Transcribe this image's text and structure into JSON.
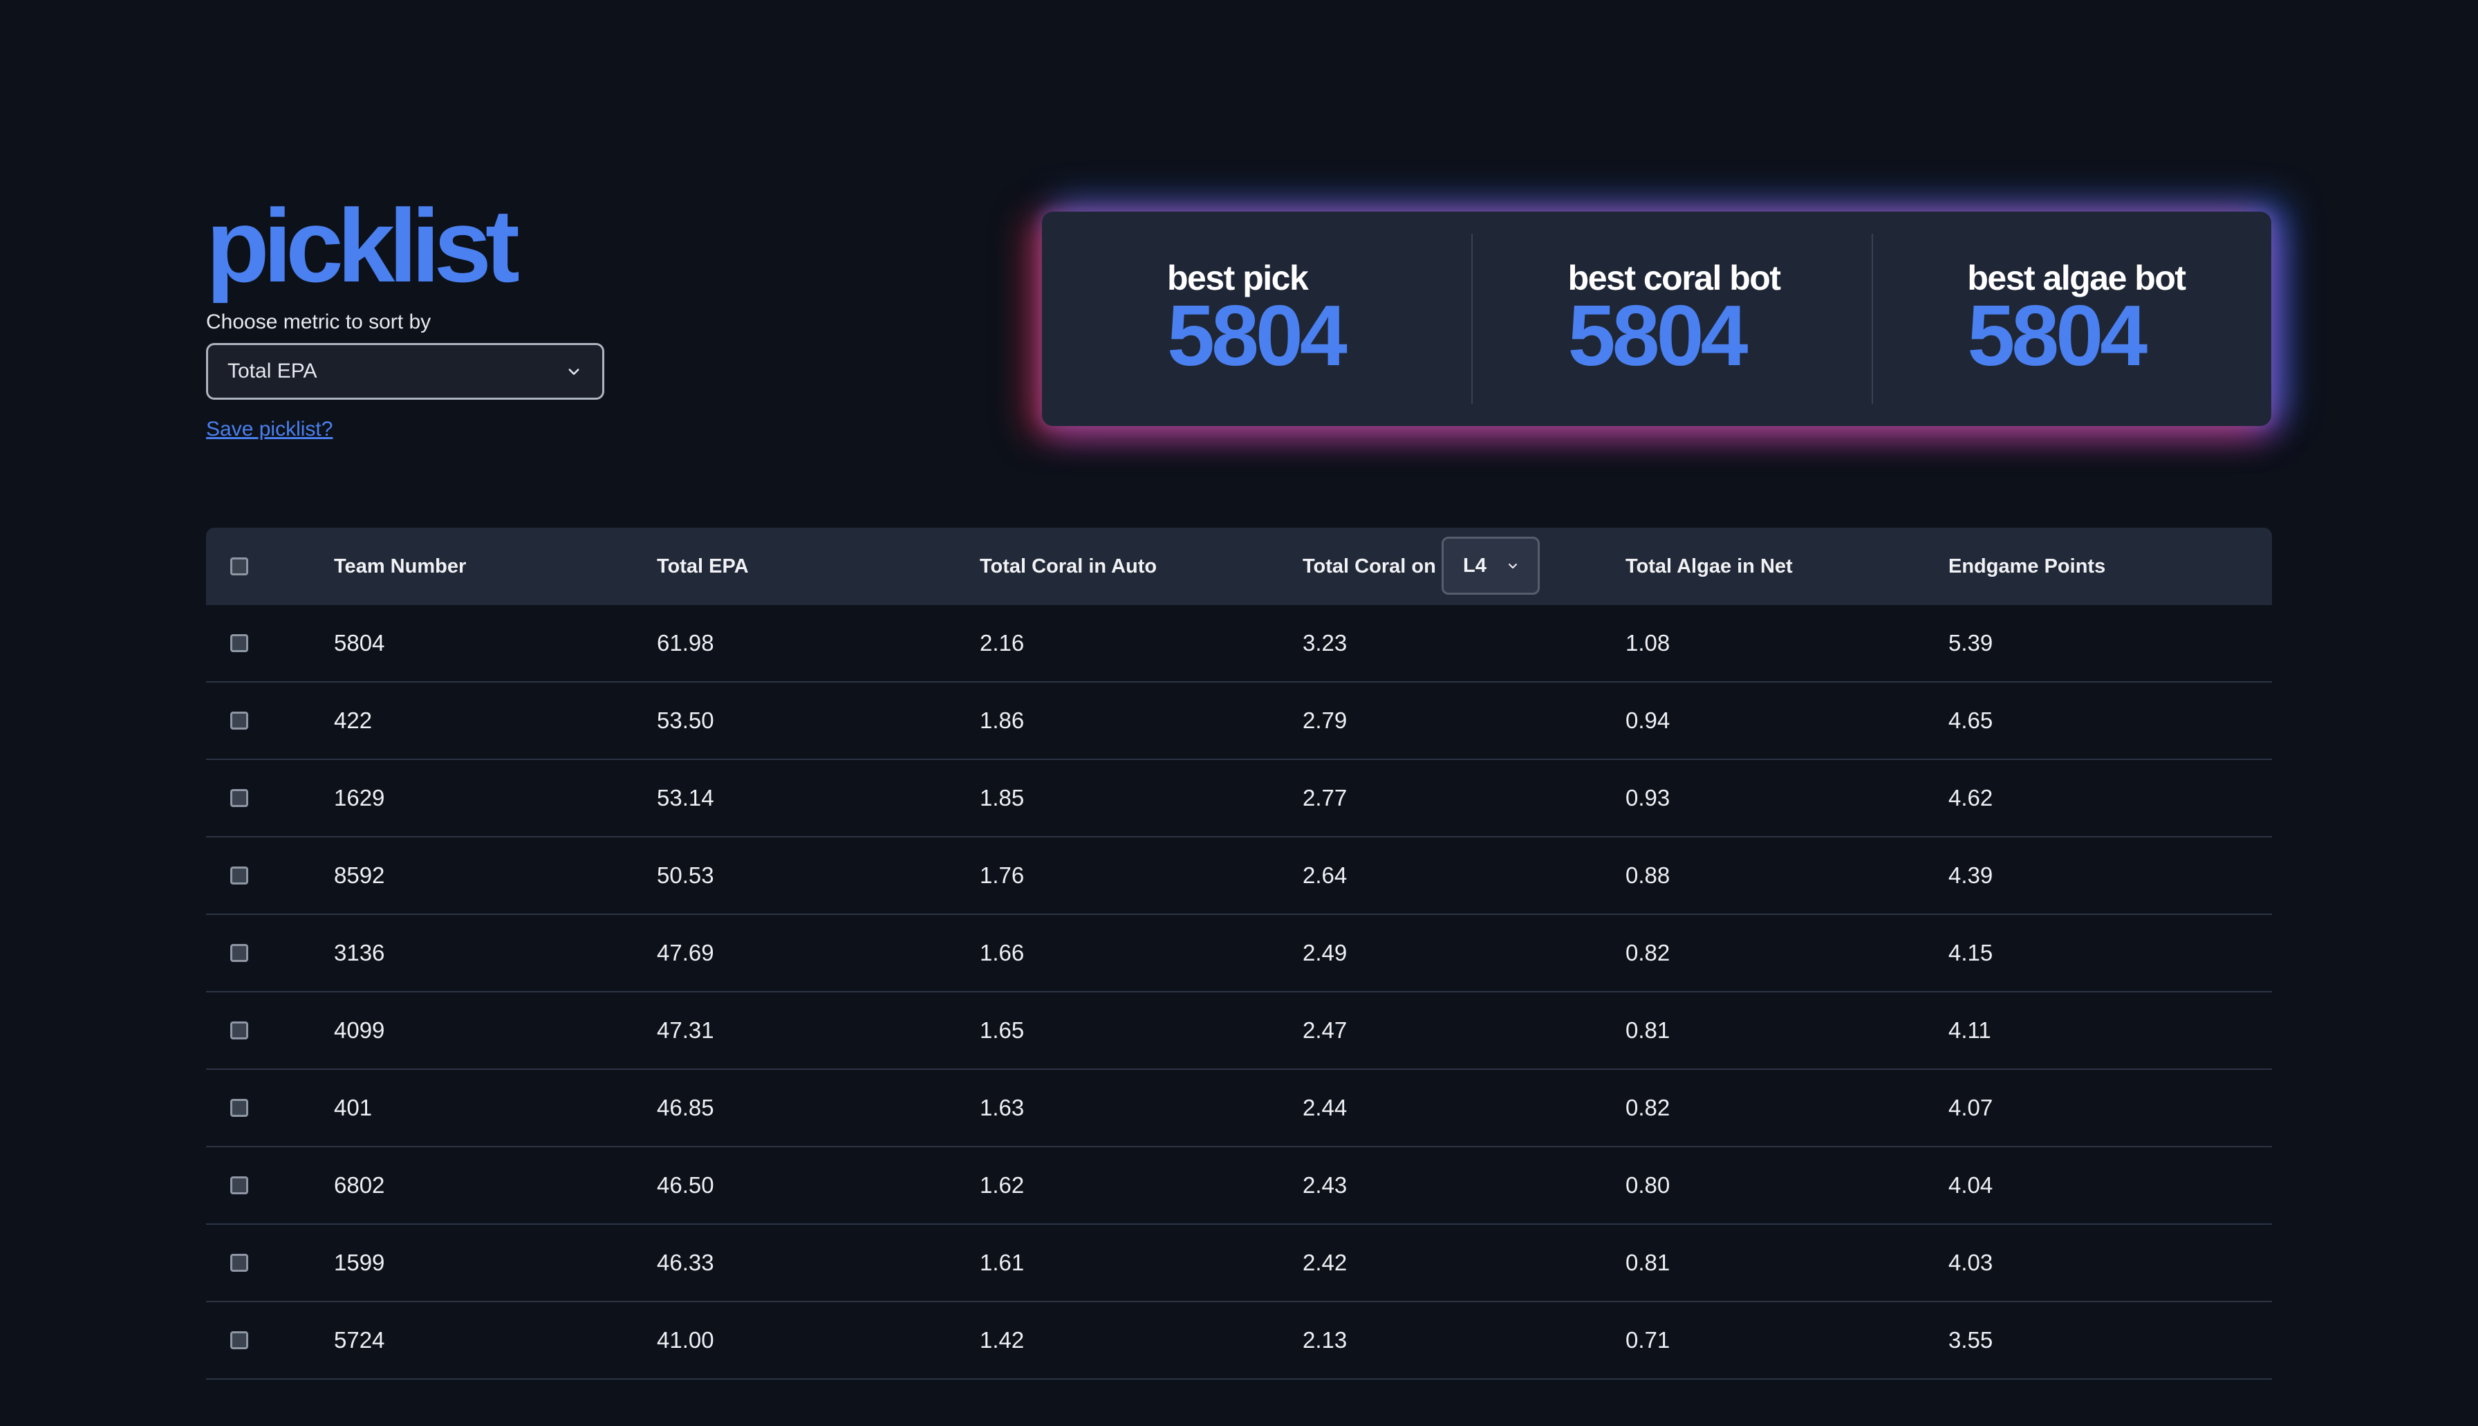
{
  "title": "picklist",
  "sort": {
    "label": "Choose metric to sort by",
    "selected": "Total EPA"
  },
  "save_link": "Save picklist?",
  "stats": [
    {
      "label": "best pick",
      "value": "5804"
    },
    {
      "label": "best coral bot",
      "value": "5804"
    },
    {
      "label": "best algae bot",
      "value": "5804"
    }
  ],
  "table": {
    "headers": {
      "team": "Team Number",
      "epa": "Total EPA",
      "auto": "Total Coral in Auto",
      "coral": "Total Coral on",
      "algae": "Total Algae in Net",
      "endgame": "Endgame Points"
    },
    "level_select": "L4",
    "rows": [
      {
        "team": "5804",
        "epa": "61.98",
        "auto": "2.16",
        "coral": "3.23",
        "algae": "1.08",
        "endgame": "5.39"
      },
      {
        "team": "422",
        "epa": "53.50",
        "auto": "1.86",
        "coral": "2.79",
        "algae": "0.94",
        "endgame": "4.65"
      },
      {
        "team": "1629",
        "epa": "53.14",
        "auto": "1.85",
        "coral": "2.77",
        "algae": "0.93",
        "endgame": "4.62"
      },
      {
        "team": "8592",
        "epa": "50.53",
        "auto": "1.76",
        "coral": "2.64",
        "algae": "0.88",
        "endgame": "4.39"
      },
      {
        "team": "3136",
        "epa": "47.69",
        "auto": "1.66",
        "coral": "2.49",
        "algae": "0.82",
        "endgame": "4.15"
      },
      {
        "team": "4099",
        "epa": "47.31",
        "auto": "1.65",
        "coral": "2.47",
        "algae": "0.81",
        "endgame": "4.11"
      },
      {
        "team": "401",
        "epa": "46.85",
        "auto": "1.63",
        "coral": "2.44",
        "algae": "0.82",
        "endgame": "4.07"
      },
      {
        "team": "6802",
        "epa": "46.50",
        "auto": "1.62",
        "coral": "2.43",
        "algae": "0.80",
        "endgame": "4.04"
      },
      {
        "team": "1599",
        "epa": "46.33",
        "auto": "1.61",
        "coral": "2.42",
        "algae": "0.81",
        "endgame": "4.03"
      },
      {
        "team": "5724",
        "epa": "41.00",
        "auto": "1.42",
        "coral": "2.13",
        "algae": "0.71",
        "endgame": "3.55"
      }
    ]
  },
  "colors": {
    "accent": "#4a80ef",
    "background": "#0d111a",
    "card": "#1f2636",
    "glow_red": "#e43046",
    "glow_blue": "#4078ff",
    "glow_purple": "#9646e6"
  },
  "icons": {
    "select_chevron": "chevron-down-icon",
    "level_chevron": "chevron-down-icon"
  }
}
